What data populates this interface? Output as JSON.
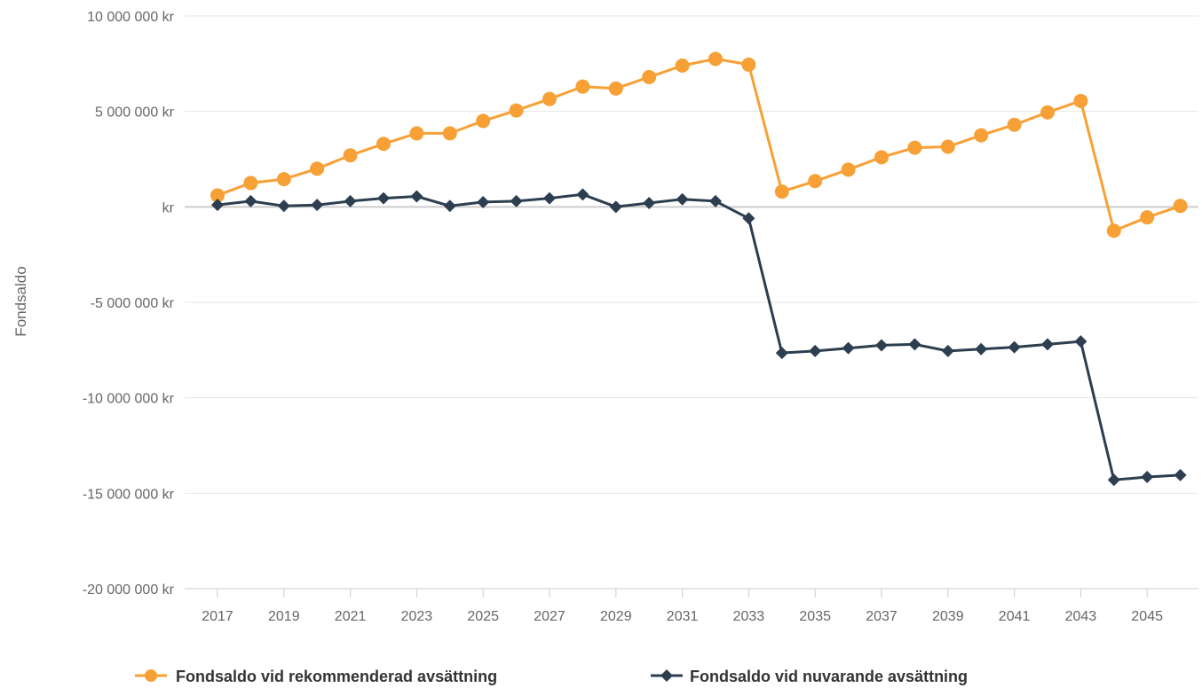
{
  "chart_data": {
    "type": "line",
    "ylabel": "Fondsaldo",
    "xlabel": "",
    "ylim": [
      -20000000,
      10000000
    ],
    "y_ticks": [
      10000000,
      5000000,
      0,
      -5000000,
      -10000000,
      -15000000,
      -20000000
    ],
    "y_tick_labels": [
      "10 000 000 kr",
      "5 000 000 kr",
      "kr",
      "-5 000 000 kr",
      "-10 000 000 kr",
      "-15 000 000 kr",
      "-20 000 000 kr"
    ],
    "x": [
      2017,
      2018,
      2019,
      2020,
      2021,
      2022,
      2023,
      2024,
      2025,
      2026,
      2027,
      2028,
      2029,
      2030,
      2031,
      2032,
      2033,
      2034,
      2035,
      2036,
      2037,
      2038,
      2039,
      2040,
      2041,
      2042,
      2043,
      2044,
      2045,
      2046
    ],
    "x_tick_labels": [
      "2017",
      "2019",
      "2021",
      "2023",
      "2025",
      "2027",
      "2029",
      "2031",
      "2033",
      "2035",
      "2037",
      "2039",
      "2041",
      "2043",
      "2045"
    ],
    "grid": true,
    "legend_position": "bottom",
    "series": [
      {
        "name": "Fondsaldo vid rekommenderad avsättning",
        "color": "#f7a035",
        "marker": "circle",
        "values": [
          600000,
          1250000,
          1450000,
          2000000,
          2700000,
          3300000,
          3850000,
          3850000,
          4500000,
          5050000,
          5650000,
          6300000,
          6200000,
          6800000,
          7400000,
          7750000,
          7450000,
          800000,
          1350000,
          1950000,
          2600000,
          3100000,
          3150000,
          3750000,
          4300000,
          4950000,
          5550000,
          -1250000,
          -550000,
          50000
        ]
      },
      {
        "name": "Fondsaldo vid nuvarande avsättning",
        "color": "#2c3e50",
        "marker": "diamond",
        "values": [
          100000,
          300000,
          50000,
          100000,
          300000,
          450000,
          550000,
          50000,
          250000,
          300000,
          450000,
          650000,
          0,
          200000,
          400000,
          300000,
          -600000,
          -7650000,
          -7550000,
          -7400000,
          -7250000,
          -7200000,
          -7550000,
          -7450000,
          -7350000,
          -7200000,
          -7050000,
          -14300000,
          -14150000,
          -14050000
        ]
      }
    ]
  }
}
